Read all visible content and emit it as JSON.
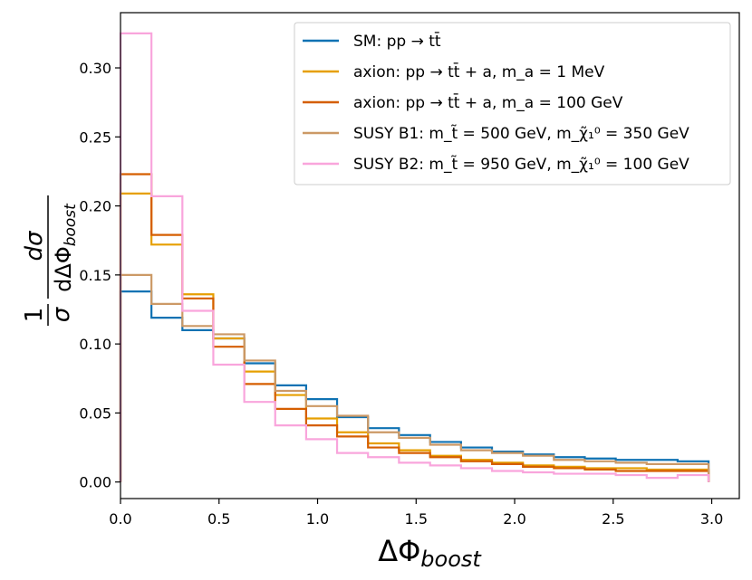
{
  "chart_data": {
    "type": "step",
    "xlabel": "ΔΦ",
    "xlabel_sub": "boost",
    "ylabel_frac_num": "1",
    "ylabel_frac_den": "σ",
    "ylabel_num": "dσ",
    "ylabel_den": "dΔΦ",
    "ylabel_den_sub": "boost",
    "xlim": [
      0,
      3.14
    ],
    "ylim": [
      -0.012,
      0.34
    ],
    "xticks": [
      0.0,
      0.5,
      1.0,
      1.5,
      2.0,
      2.5,
      3.0
    ],
    "xtick_labels": [
      "0.0",
      "0.5",
      "1.0",
      "1.5",
      "2.0",
      "2.5",
      "3.0"
    ],
    "yticks": [
      0.0,
      0.05,
      0.1,
      0.15,
      0.2,
      0.25,
      0.3
    ],
    "ytick_labels": [
      "0.00",
      "0.05",
      "0.10",
      "0.15",
      "0.20",
      "0.25",
      "0.30"
    ],
    "legend_position": "upper-right",
    "bin_edges": [
      0,
      0.157,
      0.314,
      0.471,
      0.628,
      0.785,
      0.942,
      1.099,
      1.256,
      1.413,
      1.571,
      1.728,
      1.885,
      2.042,
      2.199,
      2.356,
      2.513,
      2.67,
      2.827,
      2.984
    ],
    "series": [
      {
        "name": "SM: pp → tt̄",
        "color": "#0f72b3",
        "values": [
          0.138,
          0.119,
          0.11,
          0.104,
          0.086,
          0.07,
          0.06,
          0.047,
          0.039,
          0.034,
          0.029,
          0.025,
          0.022,
          0.02,
          0.018,
          0.017,
          0.016,
          0.016,
          0.015
        ]
      },
      {
        "name": "axion: pp → tt̄ + a, m_a = 1 MeV",
        "color": "#e69f00",
        "values": [
          0.209,
          0.172,
          0.136,
          0.104,
          0.08,
          0.063,
          0.046,
          0.036,
          0.028,
          0.023,
          0.019,
          0.016,
          0.014,
          0.012,
          0.011,
          0.01,
          0.01,
          0.009,
          0.009
        ]
      },
      {
        "name": "axion: pp → tt̄ + a, m_a = 100 GeV",
        "color": "#d55e00",
        "values": [
          0.223,
          0.179,
          0.133,
          0.098,
          0.071,
          0.053,
          0.041,
          0.033,
          0.025,
          0.021,
          0.018,
          0.015,
          0.013,
          0.011,
          0.01,
          0.009,
          0.008,
          0.008,
          0.008
        ]
      },
      {
        "name": "SUSY B1: m_t̃ = 500 GeV, m_χ̃₁⁰ = 350 GeV",
        "color": "#cc9966",
        "values": [
          0.15,
          0.129,
          0.113,
          0.107,
          0.088,
          0.066,
          0.055,
          0.048,
          0.036,
          0.032,
          0.027,
          0.023,
          0.021,
          0.019,
          0.016,
          0.015,
          0.014,
          0.013,
          0.013
        ]
      },
      {
        "name": "SUSY B2: m_t̃ = 950 GeV, m_χ̃₁⁰ = 100 GeV",
        "color": "#f9a5dc",
        "values": [
          0.325,
          0.207,
          0.124,
          0.085,
          0.058,
          0.041,
          0.031,
          0.021,
          0.018,
          0.014,
          0.012,
          0.01,
          0.008,
          0.007,
          0.006,
          0.006,
          0.005,
          0.003,
          0.005
        ]
      }
    ]
  }
}
